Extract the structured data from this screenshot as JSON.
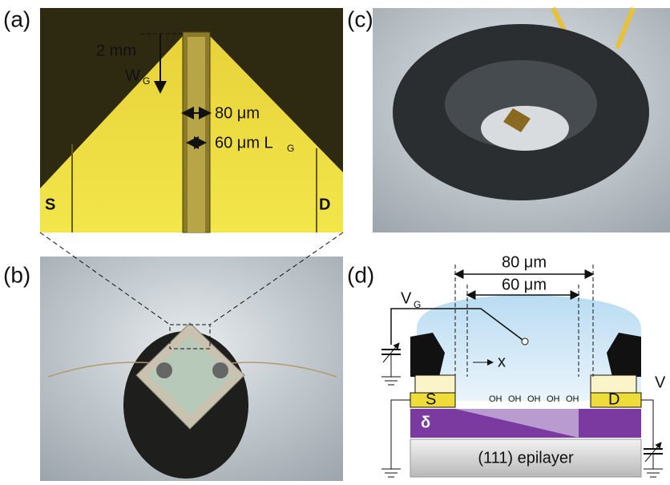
{
  "panels": {
    "a": {
      "label": "(a)",
      "scale": "2 mm",
      "width_symbol": "W",
      "width_sub": "G",
      "gap_outer": "80 μm",
      "gap_inner": "60 μm L",
      "gap_inner_sub": "G",
      "source": "S",
      "drain": "D"
    },
    "b": {
      "label": "(b)"
    },
    "c": {
      "label": "(c)"
    },
    "d": {
      "label": "(d)",
      "dim_outer": "80 μm",
      "dim_inner": "60 μm",
      "gate_symbol": "V",
      "gate_sub": "G",
      "axis": "x",
      "hydroxyls": [
        "OH",
        "OH",
        "OH",
        "OH",
        "OH"
      ],
      "source": "S",
      "drain": "D",
      "delta": "δ",
      "substrate": "(111) epilayer",
      "drain_symbol": "V"
    }
  }
}
